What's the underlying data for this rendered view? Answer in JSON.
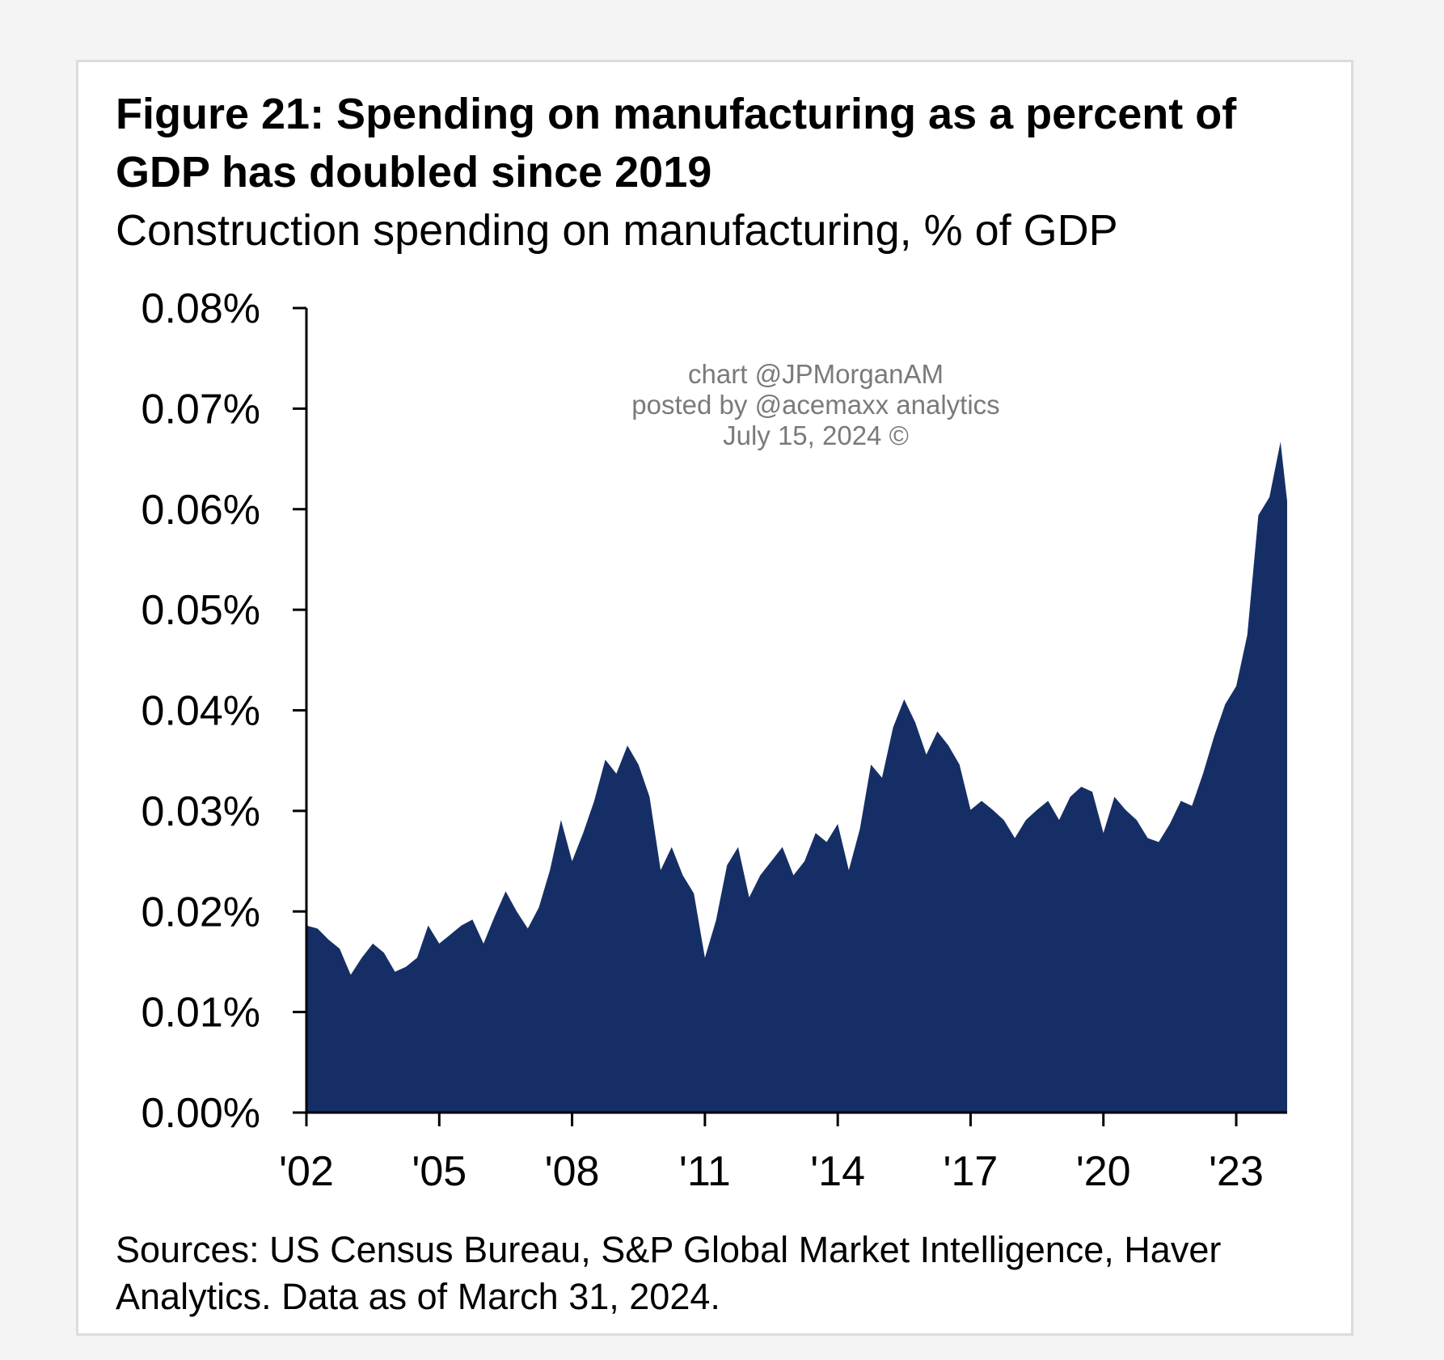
{
  "chart_data": {
    "type": "area",
    "title": "Figure 21: Spending on manufacturing as a percent of GDP has doubled since 2019",
    "subtitle": "Construction spending on manufacturing, % of GDP",
    "watermark": [
      "chart @JPMorganAM",
      "posted by @acemaxx analytics",
      "July 15, 2024 ©"
    ],
    "source": "Sources: US Census Bureau, S&P Global Market Intelligence, Haver Analytics. Data as of March 31, 2024.",
    "color": "#152f66",
    "xlim": [
      2002,
      2024.15
    ],
    "xticks": [
      {
        "value": 2002,
        "label": "'02"
      },
      {
        "value": 2005,
        "label": "'05"
      },
      {
        "value": 2008,
        "label": "'08"
      },
      {
        "value": 2011,
        "label": "'11"
      },
      {
        "value": 2014,
        "label": "'14"
      },
      {
        "value": 2017,
        "label": "'17"
      },
      {
        "value": 2020,
        "label": "'20"
      },
      {
        "value": 2023,
        "label": "'23"
      }
    ],
    "ylim": [
      0,
      0.08
    ],
    "yticks": [
      {
        "value": 0,
        "label": "0.00%"
      },
      {
        "value": 0.01,
        "label": "0.01%"
      },
      {
        "value": 0.02,
        "label": "0.02%"
      },
      {
        "value": 0.03,
        "label": "0.03%"
      },
      {
        "value": 0.04,
        "label": "0.04%"
      },
      {
        "value": 0.05,
        "label": "0.05%"
      },
      {
        "value": 0.06,
        "label": "0.06%"
      },
      {
        "value": 0.07,
        "label": "0.07%"
      },
      {
        "value": 0.08,
        "label": "0.08%"
      }
    ],
    "x": [
      2002,
      2002.25,
      2002.5,
      2002.75,
      2003,
      2003.25,
      2003.5,
      2003.75,
      2004,
      2004.25,
      2004.5,
      2004.75,
      2005,
      2005.25,
      2005.5,
      2005.75,
      2006,
      2006.25,
      2006.5,
      2006.75,
      2007,
      2007.25,
      2007.5,
      2007.75,
      2008,
      2008.25,
      2008.5,
      2008.75,
      2009,
      2009.25,
      2009.5,
      2009.75,
      2010,
      2010.25,
      2010.5,
      2010.75,
      2011,
      2011.25,
      2011.5,
      2011.75,
      2012,
      2012.25,
      2012.5,
      2012.75,
      2013,
      2013.25,
      2013.5,
      2013.75,
      2014,
      2014.25,
      2014.5,
      2014.75,
      2015,
      2015.25,
      2015.5,
      2015.75,
      2016,
      2016.25,
      2016.5,
      2016.75,
      2017,
      2017.25,
      2017.5,
      2017.75,
      2018,
      2018.25,
      2018.5,
      2018.75,
      2019,
      2019.25,
      2019.5,
      2019.75,
      2020,
      2020.25,
      2020.5,
      2020.75,
      2021,
      2021.25,
      2021.5,
      2021.75,
      2022,
      2022.25,
      2022.5,
      2022.75,
      2023,
      2023.25,
      2023.5,
      2023.75,
      2024,
      2024.15
    ],
    "values": [
      0.0186,
      0.0183,
      0.0172,
      0.0163,
      0.0137,
      0.0154,
      0.0168,
      0.0159,
      0.014,
      0.0145,
      0.0154,
      0.0186,
      0.0168,
      0.0177,
      0.0186,
      0.0192,
      0.0168,
      0.0195,
      0.022,
      0.02,
      0.0183,
      0.0204,
      0.0241,
      0.0291,
      0.025,
      0.0278,
      0.031,
      0.0351,
      0.0337,
      0.0365,
      0.0346,
      0.0314,
      0.0241,
      0.0264,
      0.0236,
      0.0218,
      0.0154,
      0.0191,
      0.0246,
      0.0264,
      0.0214,
      0.0236,
      0.025,
      0.0264,
      0.0236,
      0.025,
      0.0278,
      0.0269,
      0.0287,
      0.0241,
      0.0282,
      0.0346,
      0.0333,
      0.0383,
      0.0411,
      0.0388,
      0.0356,
      0.0379,
      0.0365,
      0.0346,
      0.0301,
      0.031,
      0.0301,
      0.0291,
      0.0273,
      0.0291,
      0.0301,
      0.031,
      0.0291,
      0.0314,
      0.0324,
      0.0319,
      0.0278,
      0.0314,
      0.0301,
      0.0291,
      0.0273,
      0.0269,
      0.0287,
      0.031,
      0.0305,
      0.0337,
      0.0374,
      0.0406,
      0.0424,
      0.0475,
      0.0594,
      0.0612,
      0.0667,
      0.0608
    ]
  }
}
